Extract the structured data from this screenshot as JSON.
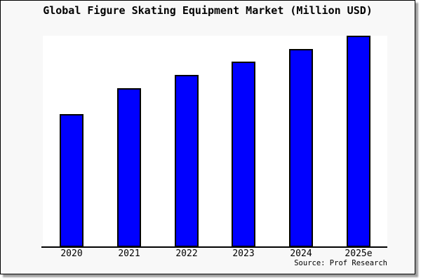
{
  "chart": {
    "title": "Global Figure Skating Equipment Market (Million USD)",
    "source": "Source: Prof Research"
  },
  "chart_data": {
    "type": "bar",
    "title": "Global Figure Skating Equipment Market (Million USD)",
    "categories": [
      "2020",
      "2021",
      "2022",
      "2023",
      "2024",
      "2025e"
    ],
    "values": [
      62.9,
      75.2,
      81.5,
      87.8,
      93.7,
      100
    ],
    "values_unit": "relative bar height, percent of tallest (2025e) bar; chart displays no y-axis scale",
    "xlabel": "",
    "ylabel": "",
    "ylim": [
      0,
      100
    ],
    "grid": false,
    "legend": null,
    "annotations": [
      "Source: Prof Research"
    ],
    "bar_color": "#0000ff",
    "bar_border_color": "#000000"
  },
  "colors": {
    "figure_background": "#f8f8f8",
    "plot_background": "#ffffff",
    "figure_border": "#000000",
    "axis_line": "#000000",
    "text": "#000000",
    "shadow": "#a0a0a0",
    "bar_fill": "#0000ff"
  }
}
